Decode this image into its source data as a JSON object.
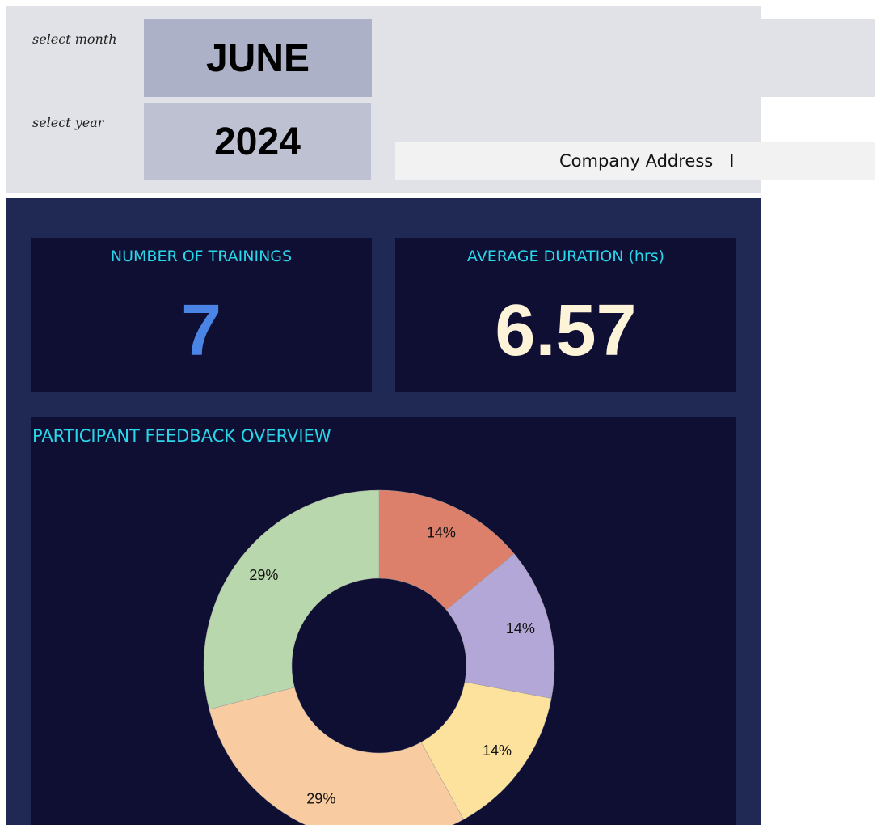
{
  "controls": {
    "month_label": "select month",
    "month_value": "JUNE",
    "year_label": "select year",
    "year_value": "2024",
    "address": "Company Address   I"
  },
  "kpis": {
    "trainings": {
      "title": "NUMBER OF TRAININGS",
      "value": "7"
    },
    "duration": {
      "title": "AVERAGE DURATION (hrs)",
      "value": "6.57"
    }
  },
  "colors": {
    "kpi_title": "#2ad6ea",
    "trainings_value": "#4a84e4",
    "duration_value": "#fdf3d9",
    "card_bg": "#0f0f33",
    "dash_bg": "#1f2954"
  },
  "chart_data": {
    "type": "pie",
    "title": "PARTICIPANT FEEDBACK OVERVIEW",
    "donut": true,
    "legend": "none",
    "slices": [
      {
        "value": 14,
        "label": "14%",
        "color": "#dc7f6b"
      },
      {
        "value": 14,
        "label": "14%",
        "color": "#b2a7d6"
      },
      {
        "value": 14,
        "label": "14%",
        "color": "#fde29d"
      },
      {
        "value": 29,
        "label": "29%",
        "color": "#f8cba0"
      },
      {
        "value": 29,
        "label": "29%",
        "color": "#b9d7ac"
      }
    ]
  }
}
